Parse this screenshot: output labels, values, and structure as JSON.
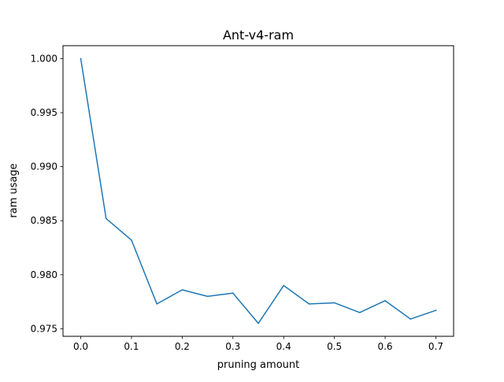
{
  "chart_data": {
    "type": "line",
    "title": "Ant-v4-ram",
    "xlabel": "pruning amount",
    "ylabel": "ram usage",
    "xlim": [
      -0.035,
      0.735
    ],
    "ylim": [
      0.9743,
      1.0012
    ],
    "x_ticks": [
      0.0,
      0.1,
      0.2,
      0.3,
      0.4,
      0.5,
      0.6,
      0.7
    ],
    "x_tick_labels": [
      "0.0",
      "0.1",
      "0.2",
      "0.3",
      "0.4",
      "0.5",
      "0.6",
      "0.7"
    ],
    "y_ticks": [
      0.975,
      0.98,
      0.985,
      0.99,
      0.995,
      1.0
    ],
    "y_tick_labels": [
      "0.975",
      "0.980",
      "0.985",
      "0.990",
      "0.995",
      "1.000"
    ],
    "grid": false,
    "series": [
      {
        "color": "#1f77b4",
        "x": [
          0.0,
          0.05,
          0.1,
          0.15,
          0.2,
          0.25,
          0.3,
          0.35,
          0.4,
          0.45,
          0.5,
          0.55,
          0.6,
          0.65,
          0.7
        ],
        "values": [
          1.0,
          0.9852,
          0.9832,
          0.9773,
          0.9786,
          0.978,
          0.9783,
          0.9755,
          0.979,
          0.9773,
          0.9774,
          0.9765,
          0.9776,
          0.9759,
          0.9767
        ]
      }
    ]
  }
}
